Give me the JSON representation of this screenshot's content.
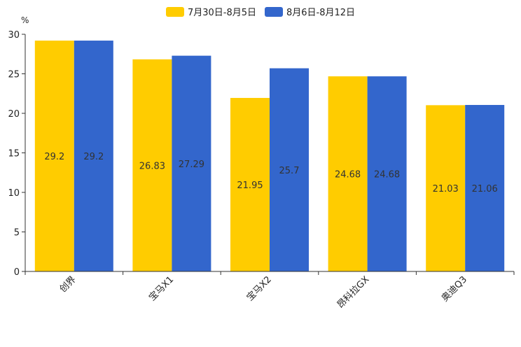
{
  "chart_data": {
    "type": "bar",
    "unit": "%",
    "categories": [
      "创界",
      "宝马X1",
      "宝马X2",
      "昂科拉GX",
      "奥迪Q3"
    ],
    "series": [
      {
        "name": "7月30日-8月5日",
        "color": "#ffcc00",
        "values": [
          29.2,
          26.83,
          21.95,
          24.68,
          21.03
        ]
      },
      {
        "name": "8月6日-8月12日",
        "color": "#3366cc",
        "values": [
          29.2,
          27.29,
          25.7,
          24.68,
          21.06
        ]
      }
    ],
    "value_labels": [
      [
        "29.2",
        "26.83",
        "21.95",
        "24.68",
        "21.03"
      ],
      [
        "29.2",
        "27.29",
        "25.7",
        "24.68",
        "21.06"
      ]
    ],
    "yticks": [
      0,
      5,
      10,
      15,
      20,
      25,
      30
    ],
    "ylim": [
      0,
      30
    ],
    "legend_position": "top-center",
    "grid": false
  }
}
